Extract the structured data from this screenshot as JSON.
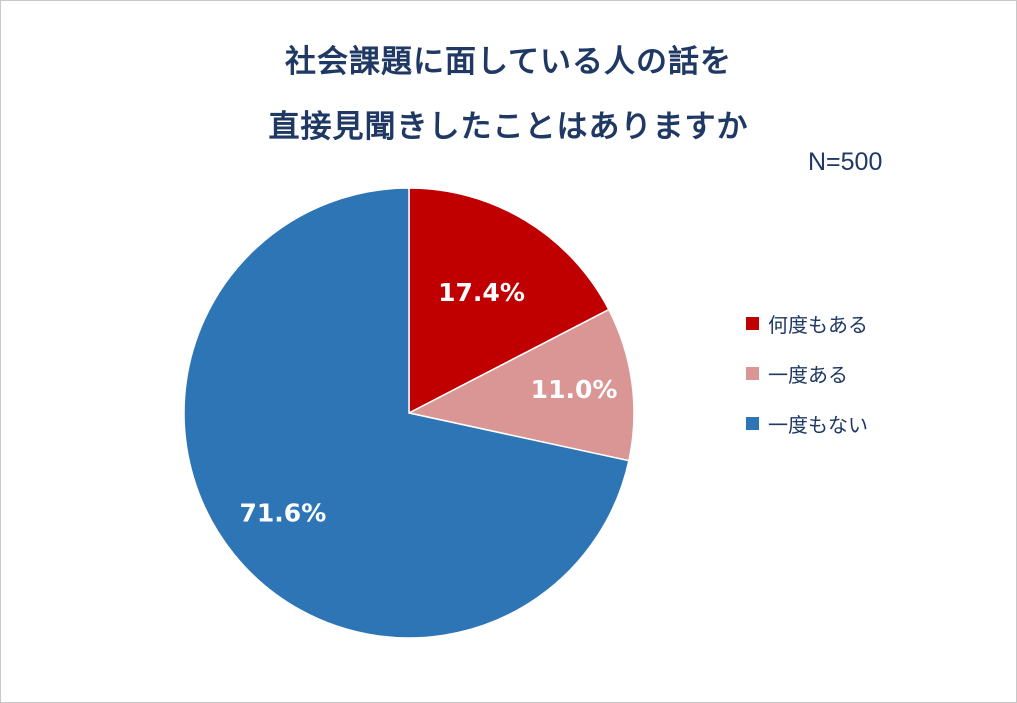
{
  "title_lines": [
    "社会課題に面している人の話を",
    "直接見聞きしたことはありますか"
  ],
  "sample_size": "N=500",
  "chart_data": {
    "type": "pie",
    "title": "社会課題に面している人の話を直接見聞きしたことはありますか",
    "categories": [
      "何度もある",
      "一度ある",
      "一度もない"
    ],
    "values": [
      17.4,
      11.0,
      71.6
    ],
    "labels": [
      "17.4%",
      "11.0%",
      "71.6%"
    ],
    "colors": [
      "#c00000",
      "#d99694",
      "#2e75b6"
    ],
    "legend": "right"
  }
}
